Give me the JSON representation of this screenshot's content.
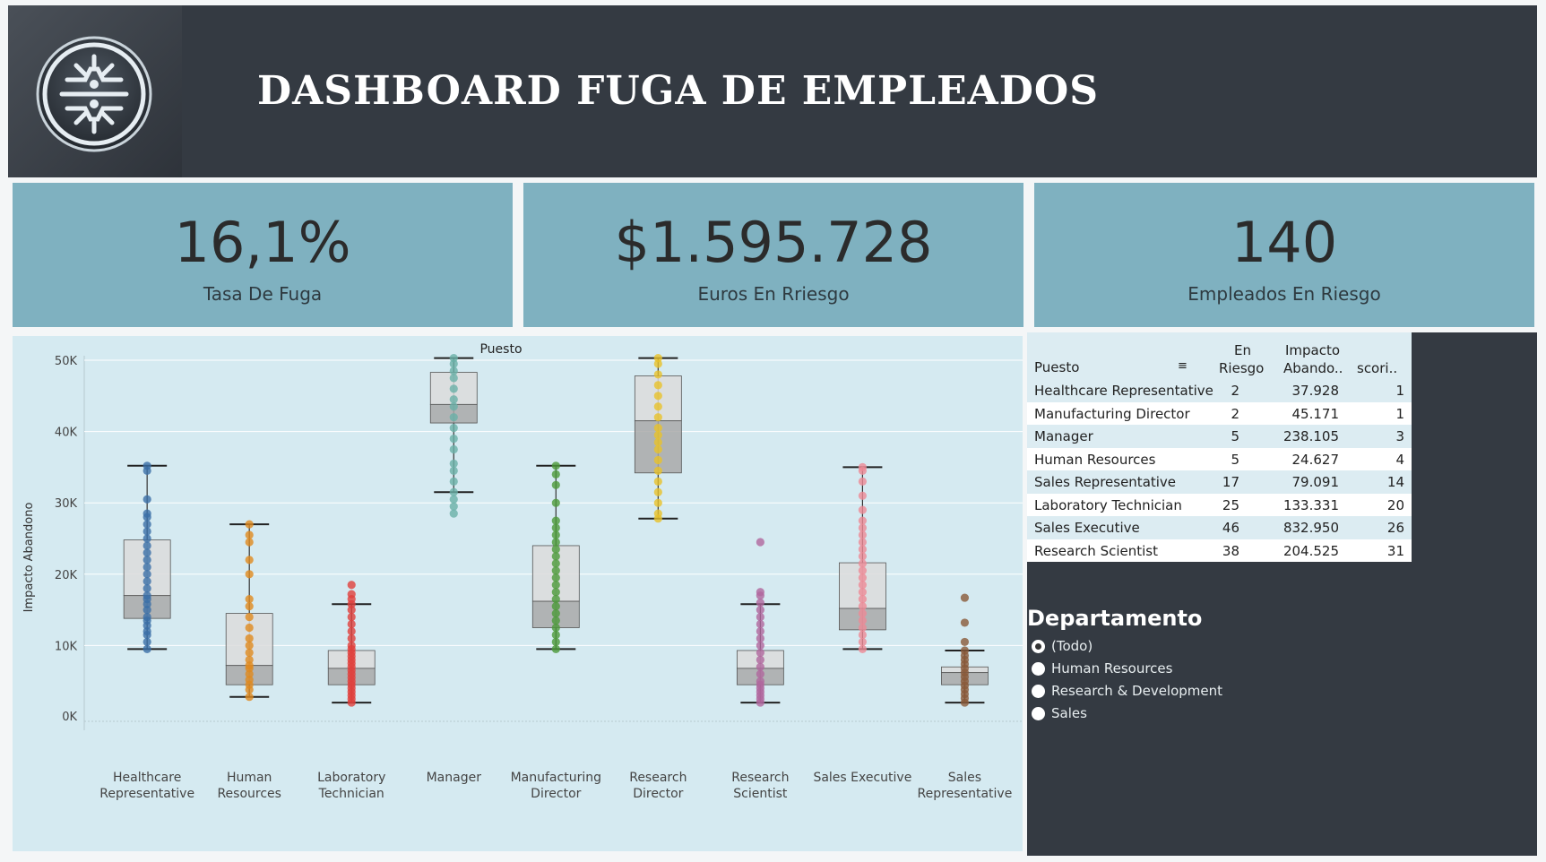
{
  "header": {
    "title": "DASHBOARD FUGA DE EMPLEADOS",
    "logo_icon": "circuit-logo-icon"
  },
  "kpis": [
    {
      "value": "16,1%",
      "label": "Tasa De Fuga"
    },
    {
      "value": "$1.595.728",
      "label": "Euros En Rriesgo"
    },
    {
      "value": "140",
      "label": "Empleados En Riesgo"
    }
  ],
  "table": {
    "headers": {
      "puesto": "Puesto",
      "en_riesgo_1": "En",
      "en_riesgo_2": "Riesgo",
      "impacto_1": "Impacto",
      "impacto_2": "Abando..",
      "score": "scori.."
    },
    "sort_icon": "sort-descending-icon",
    "rows": [
      {
        "puesto": "Healthcare Representative",
        "en_riesgo": "2",
        "impacto": "37.928",
        "score": "1"
      },
      {
        "puesto": "Manufacturing Director",
        "en_riesgo": "2",
        "impacto": "45.171",
        "score": "1"
      },
      {
        "puesto": "Manager",
        "en_riesgo": "5",
        "impacto": "238.105",
        "score": "3"
      },
      {
        "puesto": "Human Resources",
        "en_riesgo": "5",
        "impacto": "24.627",
        "score": "4"
      },
      {
        "puesto": "Sales Representative",
        "en_riesgo": "17",
        "impacto": "79.091",
        "score": "14"
      },
      {
        "puesto": "Laboratory Technician",
        "en_riesgo": "25",
        "impacto": "133.331",
        "score": "20"
      },
      {
        "puesto": "Sales Executive",
        "en_riesgo": "46",
        "impacto": "832.950",
        "score": "26"
      },
      {
        "puesto": "Research Scientist",
        "en_riesgo": "38",
        "impacto": "204.525",
        "score": "31"
      }
    ]
  },
  "filter": {
    "title": "Departamento",
    "options": [
      "(Todo)",
      "Human Resources",
      "Research & Development",
      "Sales"
    ],
    "selected": "(Todo)"
  },
  "chart_data": {
    "type": "box",
    "title": "Puesto",
    "xlabel": "",
    "ylabel": "Impacto Abandono",
    "ylim": [
      0,
      55000
    ],
    "yticks": [
      0,
      10000,
      20000,
      30000,
      40000,
      50000
    ],
    "ytick_labels": [
      "0K",
      "10K",
      "20K",
      "30K",
      "40K",
      "50K"
    ],
    "grid": true,
    "categories": [
      {
        "label": [
          "Healthcare",
          "Representative"
        ],
        "color": "#3b6fa8",
        "whisker_low": 9500,
        "q1": 13800,
        "median": 17000,
        "q3": 24800,
        "whisker_high": 35200,
        "points": [
          9500,
          10500,
          11500,
          12000,
          12800,
          13500,
          14000,
          15000,
          15800,
          16500,
          17000,
          18000,
          19000,
          20000,
          21000,
          22000,
          23000,
          24000,
          25000,
          26000,
          27000,
          28000,
          28500,
          30500,
          34500,
          35200
        ]
      },
      {
        "label": [
          "Human",
          "Resources"
        ],
        "color": "#e08a1e",
        "whisker_low": 2800,
        "q1": 4500,
        "median": 7200,
        "q3": 14500,
        "whisker_high": 27000,
        "points": [
          2800,
          3800,
          4500,
          5200,
          6000,
          6800,
          7200,
          8000,
          9000,
          10000,
          11000,
          12500,
          14000,
          15500,
          16500,
          20000,
          22000,
          24500,
          25500,
          27000
        ]
      },
      {
        "label": [
          "Laboratory",
          "Technician"
        ],
        "color": "#e0403c",
        "whisker_low": 2000,
        "q1": 4500,
        "median": 6800,
        "q3": 9300,
        "whisker_high": 15800,
        "points": [
          2000,
          2500,
          3000,
          3500,
          4000,
          4500,
          5000,
          5500,
          6000,
          6500,
          7000,
          7500,
          8000,
          8500,
          9000,
          9500,
          10000,
          11000,
          12000,
          13000,
          14000,
          15000,
          15800,
          16500,
          17200,
          18500
        ]
      },
      {
        "label": [
          "Manager"
        ],
        "color": "#6ab0a8",
        "whisker_low": 31500,
        "q1": 41200,
        "median": 43800,
        "q3": 48300,
        "whisker_high": 50300,
        "points": [
          28500,
          29500,
          30500,
          31500,
          33000,
          34500,
          35500,
          37500,
          39000,
          40500,
          42000,
          43500,
          44500,
          46000,
          47500,
          48500,
          49500,
          50300
        ]
      },
      {
        "label": [
          "Manufacturing",
          "Director"
        ],
        "color": "#4c9a3a",
        "whisker_low": 9500,
        "q1": 12500,
        "median": 16200,
        "q3": 24000,
        "whisker_high": 35200,
        "points": [
          9500,
          10500,
          11500,
          12500,
          13500,
          14500,
          15500,
          16500,
          17500,
          18500,
          19500,
          20500,
          21500,
          22500,
          23500,
          24500,
          25500,
          26500,
          27500,
          30000,
          32500,
          34000,
          35200
        ]
      },
      {
        "label": [
          "Research",
          "Director"
        ],
        "color": "#e8c22a",
        "whisker_low": 27800,
        "q1": 34200,
        "median": 41500,
        "q3": 47800,
        "whisker_high": 50300,
        "points": [
          27800,
          28500,
          30000,
          31500,
          33000,
          34500,
          36000,
          37500,
          38500,
          39500,
          40500,
          42000,
          43500,
          45000,
          46500,
          48000,
          49500,
          50300
        ]
      },
      {
        "label": [
          "Research",
          "Scientist"
        ],
        "color": "#b0679e",
        "whisker_low": 2000,
        "q1": 4500,
        "median": 6800,
        "q3": 9300,
        "whisker_high": 15800,
        "points": [
          2000,
          2500,
          3000,
          3500,
          4000,
          4500,
          5000,
          6000,
          7000,
          8000,
          9000,
          10000,
          11000,
          12000,
          13000,
          14000,
          15000,
          16000,
          17000,
          17500,
          24500
        ]
      },
      {
        "label": [
          "Sales Executive"
        ],
        "color": "#ee8a96",
        "whisker_low": 9500,
        "q1": 12200,
        "median": 15200,
        "q3": 21600,
        "whisker_high": 35000,
        "points": [
          9500,
          10500,
          11500,
          12500,
          13500,
          14500,
          15500,
          16500,
          17500,
          18500,
          19500,
          20500,
          21500,
          22500,
          23500,
          24500,
          25500,
          26500,
          27500,
          29000,
          31000,
          33000,
          34500,
          35000
        ]
      },
      {
        "label": [
          "Sales",
          "Representative"
        ],
        "color": "#8a5a3a",
        "whisker_low": 2000,
        "q1": 4500,
        "median": 6200,
        "q3": 7000,
        "whisker_high": 9300,
        "points": [
          2000,
          2600,
          3200,
          3800,
          4400,
          5000,
          5600,
          6200,
          6800,
          7400,
          8000,
          8600,
          9300,
          10500,
          13200,
          16700
        ]
      }
    ]
  }
}
